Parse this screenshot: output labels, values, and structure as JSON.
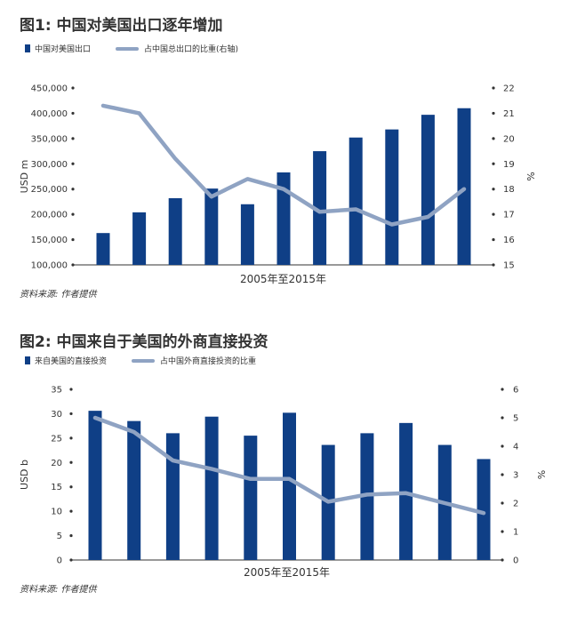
{
  "colors": {
    "bar": "#0f3f86",
    "line": "#8fa3c3",
    "text": "#333333",
    "axis": "#333333"
  },
  "charts": [
    {
      "title": "图1: 中国对美国出口逐年增加",
      "legend_bar": "中国对美国出口",
      "legend_line": "占中国总出口的比重(右轴)",
      "source": "资料来源: 作者提供"
    },
    {
      "title": "图2: 中国来自于美国的外商直接投资",
      "legend_bar": "来自美国的直接投资",
      "legend_line": "占中国外商直接投资的比重",
      "source": "资料来源: 作者提供"
    }
  ],
  "chart_data": [
    {
      "type": "bar",
      "title": "图1: 中国对美国出口逐年增加",
      "xlabel": "2005年至2015年",
      "ylabel": "USD m",
      "y2label": "%",
      "ylim": [
        100000,
        450000
      ],
      "y2lim": [
        15,
        22
      ],
      "yticks": [
        "100,000",
        "150,000",
        "200,000",
        "250,000",
        "300,000",
        "350,000",
        "400,000",
        "450,000"
      ],
      "y2ticks": [
        "15",
        "16",
        "17",
        "18",
        "19",
        "20",
        "21",
        "22"
      ],
      "series": [
        {
          "name": "中国对美国出口",
          "type": "bar",
          "axis": "left",
          "values": [
            163000,
            204000,
            232000,
            251000,
            220000,
            283000,
            325000,
            352000,
            368000,
            397000,
            410000
          ]
        },
        {
          "name": "占中国总出口的比重(右轴)",
          "type": "line",
          "axis": "right",
          "values": [
            21.3,
            21.0,
            19.2,
            17.7,
            18.4,
            18.0,
            17.1,
            17.2,
            16.6,
            16.9,
            18.0
          ]
        }
      ],
      "legend": "top-left",
      "grid": false
    },
    {
      "type": "bar",
      "title": "图2: 中国来自于美国的外商直接投资",
      "xlabel": "2005年至2015年",
      "ylabel": "USD b",
      "y2label": "%",
      "ylim": [
        0,
        35
      ],
      "y2lim": [
        0,
        6
      ],
      "yticks": [
        "0",
        "5",
        "10",
        "15",
        "20",
        "25",
        "30",
        "35"
      ],
      "y2ticks": [
        "0",
        "1",
        "2",
        "3",
        "4",
        "5",
        "6"
      ],
      "series": [
        {
          "name": "来自美国的直接投资",
          "type": "bar",
          "axis": "left",
          "values": [
            30.6,
            28.5,
            26.0,
            29.4,
            25.5,
            30.2,
            23.6,
            26.0,
            28.1,
            23.6,
            20.7
          ]
        },
        {
          "name": "占中国外商直接投资的比重",
          "type": "line",
          "axis": "right",
          "values": [
            5.0,
            4.5,
            3.5,
            3.2,
            2.85,
            2.85,
            2.05,
            2.3,
            2.35,
            2.0,
            1.65
          ]
        }
      ],
      "legend": "top-left",
      "grid": false
    }
  ]
}
